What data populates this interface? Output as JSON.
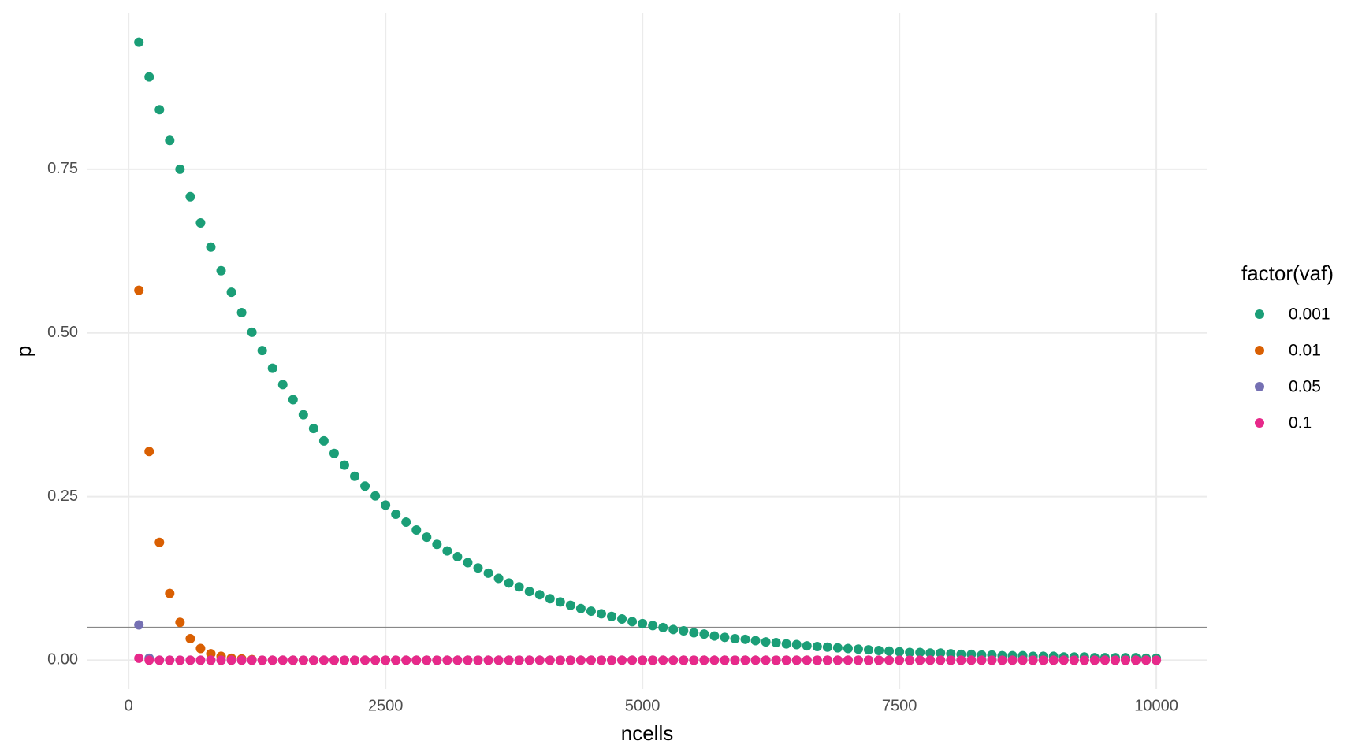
{
  "chart_data": {
    "type": "scatter",
    "x_label": "ncells",
    "y_label": "p",
    "legend_title": "factor(vaf)",
    "legend_position": "right",
    "grid": true,
    "xlim": [
      -400,
      10490
    ],
    "ylim": [
      -0.044,
      0.988
    ],
    "xticks": [
      0,
      2500,
      5000,
      7500,
      10000
    ],
    "yticks": [
      {
        "value": 0,
        "label": "0.00"
      },
      {
        "value": 0.25,
        "label": "0.25"
      },
      {
        "value": 0.5,
        "label": "0.50"
      },
      {
        "value": 0.75,
        "label": "0.75"
      }
    ],
    "hline": {
      "value": 0.05,
      "color": "#888888"
    },
    "x": [
      100,
      200,
      300,
      400,
      500,
      600,
      700,
      800,
      900,
      1000,
      1100,
      1200,
      1300,
      1400,
      1500,
      1600,
      1700,
      1800,
      1900,
      2000,
      2100,
      2200,
      2300,
      2400,
      2500,
      2600,
      2700,
      2800,
      2900,
      3000,
      3100,
      3200,
      3300,
      3400,
      3500,
      3600,
      3700,
      3800,
      3900,
      4000,
      4100,
      4200,
      4300,
      4400,
      4500,
      4600,
      4700,
      4800,
      4900,
      5000,
      5100,
      5200,
      5300,
      5400,
      5500,
      5600,
      5700,
      5800,
      5900,
      6000,
      6100,
      6200,
      6300,
      6400,
      6500,
      6600,
      6700,
      6800,
      6900,
      7000,
      7100,
      7200,
      7300,
      7400,
      7500,
      7600,
      7700,
      7800,
      7900,
      8000,
      8100,
      8200,
      8300,
      8400,
      8500,
      8600,
      8700,
      8800,
      8900,
      9000,
      9100,
      9200,
      9300,
      9400,
      9500,
      9600,
      9700,
      9800,
      9900,
      10000
    ],
    "series": [
      {
        "name": "0.001",
        "color": "#1b9e77",
        "values": [
          0.944,
          0.891,
          0.841,
          0.794,
          0.75,
          0.708,
          0.668,
          0.631,
          0.595,
          0.562,
          0.531,
          0.501,
          0.473,
          0.446,
          0.421,
          0.398,
          0.375,
          0.354,
          0.335,
          0.316,
          0.298,
          0.281,
          0.266,
          0.251,
          0.237,
          0.223,
          0.211,
          0.199,
          0.188,
          0.177,
          0.167,
          0.158,
          0.149,
          0.141,
          0.133,
          0.125,
          0.118,
          0.112,
          0.105,
          0.1,
          0.094,
          0.089,
          0.084,
          0.079,
          0.075,
          0.071,
          0.067,
          0.063,
          0.059,
          0.056,
          0.053,
          0.05,
          0.047,
          0.045,
          0.042,
          0.04,
          0.037,
          0.035,
          0.033,
          0.032,
          0.03,
          0.028,
          0.027,
          0.025,
          0.024,
          0.022,
          0.021,
          0.02,
          0.019,
          0.018,
          0.017,
          0.016,
          0.015,
          0.014,
          0.013,
          0.012,
          0.012,
          0.011,
          0.011,
          0.01,
          0.009,
          0.009,
          0.008,
          0.008,
          0.007,
          0.007,
          0.007,
          0.006,
          0.006,
          0.006,
          0.005,
          0.005,
          0.005,
          0.004,
          0.004,
          0.004,
          0.004,
          0.004,
          0.003,
          0.003
        ]
      },
      {
        "name": "0.01",
        "color": "#d95f02",
        "values": [
          0.565,
          0.319,
          0.18,
          0.102,
          0.058,
          0.033,
          0.018,
          0.01,
          0.006,
          0.003,
          0.002,
          0.001,
          0,
          0,
          0,
          0,
          0,
          0,
          0,
          0,
          0,
          0,
          0,
          0,
          0,
          0,
          0,
          0,
          0,
          0,
          0,
          0,
          0,
          0,
          0,
          0,
          0,
          0,
          0,
          0,
          0,
          0,
          0,
          0,
          0,
          0,
          0,
          0,
          0,
          0,
          0,
          0,
          0,
          0,
          0,
          0,
          0,
          0,
          0,
          0,
          0,
          0,
          0,
          0,
          0,
          0,
          0,
          0,
          0,
          0,
          0,
          0,
          0,
          0,
          0,
          0,
          0,
          0,
          0,
          0,
          0,
          0,
          0,
          0,
          0,
          0,
          0,
          0,
          0,
          0,
          0,
          0,
          0,
          0,
          0,
          0,
          0,
          0,
          0,
          0
        ]
      },
      {
        "name": "0.05",
        "color": "#7570b3",
        "values": [
          0.054,
          0.003,
          0,
          0,
          0,
          0,
          0,
          0,
          0,
          0,
          0,
          0,
          0,
          0,
          0,
          0,
          0,
          0,
          0,
          0,
          0,
          0,
          0,
          0,
          0,
          0,
          0,
          0,
          0,
          0,
          0,
          0,
          0,
          0,
          0,
          0,
          0,
          0,
          0,
          0,
          0,
          0,
          0,
          0,
          0,
          0,
          0,
          0,
          0,
          0,
          0,
          0,
          0,
          0,
          0,
          0,
          0,
          0,
          0,
          0,
          0,
          0,
          0,
          0,
          0,
          0,
          0,
          0,
          0,
          0,
          0,
          0,
          0,
          0,
          0,
          0,
          0,
          0,
          0,
          0,
          0,
          0,
          0,
          0,
          0,
          0,
          0,
          0,
          0,
          0,
          0,
          0,
          0,
          0,
          0,
          0,
          0,
          0,
          0,
          0
        ]
      },
      {
        "name": "0.1",
        "color": "#e7298a",
        "values": [
          0.003,
          0,
          0,
          0,
          0,
          0,
          0,
          0,
          0,
          0,
          0,
          0,
          0,
          0,
          0,
          0,
          0,
          0,
          0,
          0,
          0,
          0,
          0,
          0,
          0,
          0,
          0,
          0,
          0,
          0,
          0,
          0,
          0,
          0,
          0,
          0,
          0,
          0,
          0,
          0,
          0,
          0,
          0,
          0,
          0,
          0,
          0,
          0,
          0,
          0,
          0,
          0,
          0,
          0,
          0,
          0,
          0,
          0,
          0,
          0,
          0,
          0,
          0,
          0,
          0,
          0,
          0,
          0,
          0,
          0,
          0,
          0,
          0,
          0,
          0,
          0,
          0,
          0,
          0,
          0,
          0,
          0,
          0,
          0,
          0,
          0,
          0,
          0,
          0,
          0,
          0,
          0,
          0,
          0,
          0,
          0,
          0,
          0,
          0,
          0
        ]
      }
    ]
  }
}
